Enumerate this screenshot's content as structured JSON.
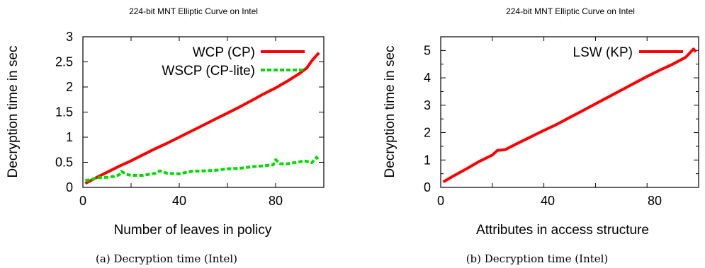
{
  "chart_data": [
    {
      "type": "line",
      "title": "224-bit MNT Elliptic Curve on Intel",
      "xlabel": "Number of leaves in policy",
      "ylabel": "Decryption time in sec",
      "caption": "(a) Decryption time (Intel)",
      "xlim": [
        0,
        100
      ],
      "ylim": [
        0,
        3
      ],
      "xticks": [
        "0",
        "40",
        "80"
      ],
      "yticks": [
        "0",
        "0.5",
        "1",
        "1.5",
        "2",
        "2.5",
        "3"
      ],
      "legend_position": "top-left",
      "series": [
        {
          "name": "WCP (CP)",
          "color": "#ff0000",
          "style": "solid",
          "x": [
            1,
            5,
            10,
            15,
            20,
            25,
            30,
            35,
            40,
            45,
            50,
            55,
            60,
            65,
            70,
            75,
            80,
            85,
            90,
            93,
            95,
            97,
            98
          ],
          "y": [
            0.08,
            0.18,
            0.3,
            0.42,
            0.53,
            0.65,
            0.77,
            0.88,
            1.0,
            1.12,
            1.24,
            1.36,
            1.48,
            1.6,
            1.73,
            1.86,
            1.98,
            2.12,
            2.27,
            2.38,
            2.52,
            2.63,
            2.68
          ]
        },
        {
          "name": "WSCP (CP-lite)",
          "color": "#00dd00",
          "style": "dashed",
          "x": [
            1,
            3,
            5,
            8,
            10,
            13,
            15,
            16,
            18,
            20,
            25,
            30,
            32,
            35,
            40,
            45,
            50,
            55,
            60,
            65,
            70,
            75,
            79,
            80,
            82,
            85,
            90,
            92,
            95,
            97,
            98
          ],
          "y": [
            0.14,
            0.15,
            0.18,
            0.2,
            0.2,
            0.22,
            0.25,
            0.32,
            0.26,
            0.24,
            0.24,
            0.28,
            0.33,
            0.28,
            0.27,
            0.32,
            0.33,
            0.34,
            0.37,
            0.38,
            0.41,
            0.43,
            0.45,
            0.55,
            0.47,
            0.47,
            0.51,
            0.53,
            0.49,
            0.6,
            0.53
          ]
        }
      ]
    },
    {
      "type": "line",
      "title": "224-bit MNT Elliptic Curve on Intel",
      "xlabel": "Attributes in access structure",
      "ylabel": "Decryption time in sec",
      "caption": "(b) Decryption time (Intel)",
      "xlim": [
        0,
        100
      ],
      "ylim": [
        0,
        5.5
      ],
      "xticks": [
        "0",
        "40",
        "80"
      ],
      "yticks": [
        "0",
        "1",
        "2",
        "3",
        "4",
        "5"
      ],
      "legend_position": "top-right",
      "series": [
        {
          "name": "LSW (KP)",
          "color": "#ff0000",
          "style": "solid",
          "x": [
            1,
            5,
            10,
            15,
            20,
            22,
            25,
            30,
            35,
            40,
            45,
            48,
            50,
            55,
            60,
            65,
            70,
            75,
            80,
            85,
            90,
            95,
            98,
            99
          ],
          "y": [
            0.2,
            0.42,
            0.68,
            0.95,
            1.18,
            1.35,
            1.38,
            1.62,
            1.85,
            2.08,
            2.3,
            2.45,
            2.55,
            2.8,
            3.05,
            3.3,
            3.55,
            3.8,
            4.05,
            4.28,
            4.5,
            4.75,
            5.05,
            4.95
          ]
        }
      ]
    }
  ]
}
